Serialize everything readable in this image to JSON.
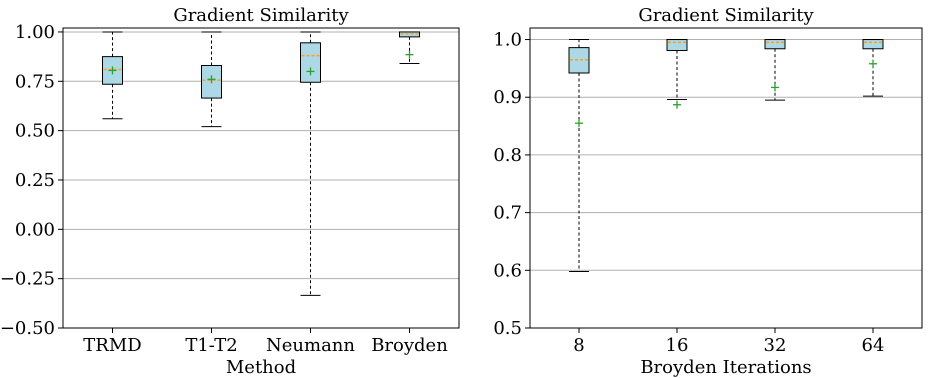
{
  "colors": {
    "box_fill": "#add8e6",
    "box_edge": "#000000",
    "median": "#ff9f1c",
    "mean": "#2ca02c",
    "grid": "#b0b0b0"
  },
  "chart_data": [
    {
      "type": "box",
      "title": "Gradient Similarity",
      "xlabel": "Method",
      "ylabel": "",
      "ylim": [
        -0.5,
        1.02
      ],
      "yticks": [
        -0.5,
        -0.25,
        0.0,
        0.25,
        0.5,
        0.75,
        1.0
      ],
      "ytick_labels": [
        "−0.50",
        "−0.25",
        "0.00",
        "0.25",
        "0.50",
        "0.75",
        "1.00"
      ],
      "grid": "horizontal",
      "categories": [
        "TRMD",
        "T1-T2",
        "Neumann",
        "Broyden"
      ],
      "boxes": [
        {
          "whislo": 0.56,
          "q1": 0.735,
          "med": 0.81,
          "q3": 0.875,
          "whishi": 1.0,
          "mean": 0.805
        },
        {
          "whislo": 0.52,
          "q1": 0.665,
          "med": 0.755,
          "q3": 0.83,
          "whishi": 1.0,
          "mean": 0.76
        },
        {
          "whislo": -0.335,
          "q1": 0.745,
          "med": 0.88,
          "q3": 0.945,
          "whishi": 1.0,
          "mean": 0.8
        },
        {
          "whislo": 0.84,
          "q1": 0.975,
          "med": 0.99,
          "q3": 1.0,
          "whishi": 1.0,
          "mean": 0.885
        }
      ]
    },
    {
      "type": "box",
      "title": "Gradient Similarity",
      "xlabel": "Broyden Iterations",
      "ylabel": "",
      "ylim": [
        0.5,
        1.02
      ],
      "yticks": [
        0.5,
        0.6,
        0.7,
        0.8,
        0.9,
        1.0
      ],
      "ytick_labels": [
        "0.5",
        "0.6",
        "0.7",
        "0.8",
        "0.9",
        "1.0"
      ],
      "grid": "horizontal",
      "categories": [
        "8",
        "16",
        "32",
        "64"
      ],
      "boxes": [
        {
          "whislo": 0.598,
          "q1": 0.942,
          "med": 0.965,
          "q3": 0.986,
          "whishi": 1.0,
          "mean": 0.855
        },
        {
          "whislo": 0.896,
          "q1": 0.981,
          "med": 0.995,
          "q3": 1.0,
          "whishi": 1.0,
          "mean": 0.887
        },
        {
          "whislo": 0.895,
          "q1": 0.984,
          "med": 0.995,
          "q3": 1.0,
          "whishi": 1.0,
          "mean": 0.917
        },
        {
          "whislo": 0.902,
          "q1": 0.984,
          "med": 0.995,
          "q3": 1.0,
          "whishi": 1.0,
          "mean": 0.958
        }
      ]
    }
  ]
}
